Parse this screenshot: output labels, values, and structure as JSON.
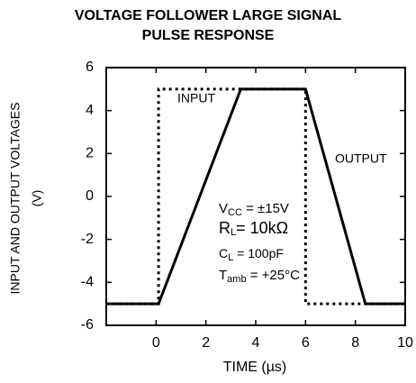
{
  "chart_data": {
    "type": "line",
    "title_lines": [
      "VOLTAGE FOLLOWER LARGE SIGNAL",
      "PULSE RESPONSE"
    ],
    "x_label": "TIME (µs)",
    "y_label_lines": [
      "INPUT AND OUTPUT VOLTAGES",
      "(V)"
    ],
    "xlim": [
      -2,
      10
    ],
    "xticks": [
      0,
      2,
      4,
      6,
      8,
      10
    ],
    "ylim": [
      -6,
      6
    ],
    "yticks": [
      -6,
      -4,
      -2,
      0,
      2,
      4,
      6
    ],
    "grid": false,
    "series": [
      {
        "name": "INPUT",
        "color": "#000",
        "style": "dotted",
        "x": [
          -2,
          0.1,
          0.1,
          6,
          6,
          10
        ],
        "values": [
          -5,
          -5,
          5,
          5,
          -5,
          -5
        ]
      },
      {
        "name": "OUTPUT",
        "color": "#000",
        "style": "solid",
        "x": [
          -2,
          0.1,
          3.4,
          6,
          8.4,
          10
        ],
        "values": [
          -5,
          -5,
          5,
          5,
          -5,
          -5
        ]
      }
    ],
    "conditions": [
      {
        "main": "V",
        "sub": "CC",
        "rest": " = ±15V"
      },
      {
        "main": "R",
        "sub": "L",
        "rest": "= 10kΩ"
      },
      {
        "main": "C",
        "sub": "L",
        "rest": " = 100pF"
      },
      {
        "main": "T",
        "sub": "amb",
        "rest": " = +25°C"
      }
    ]
  }
}
